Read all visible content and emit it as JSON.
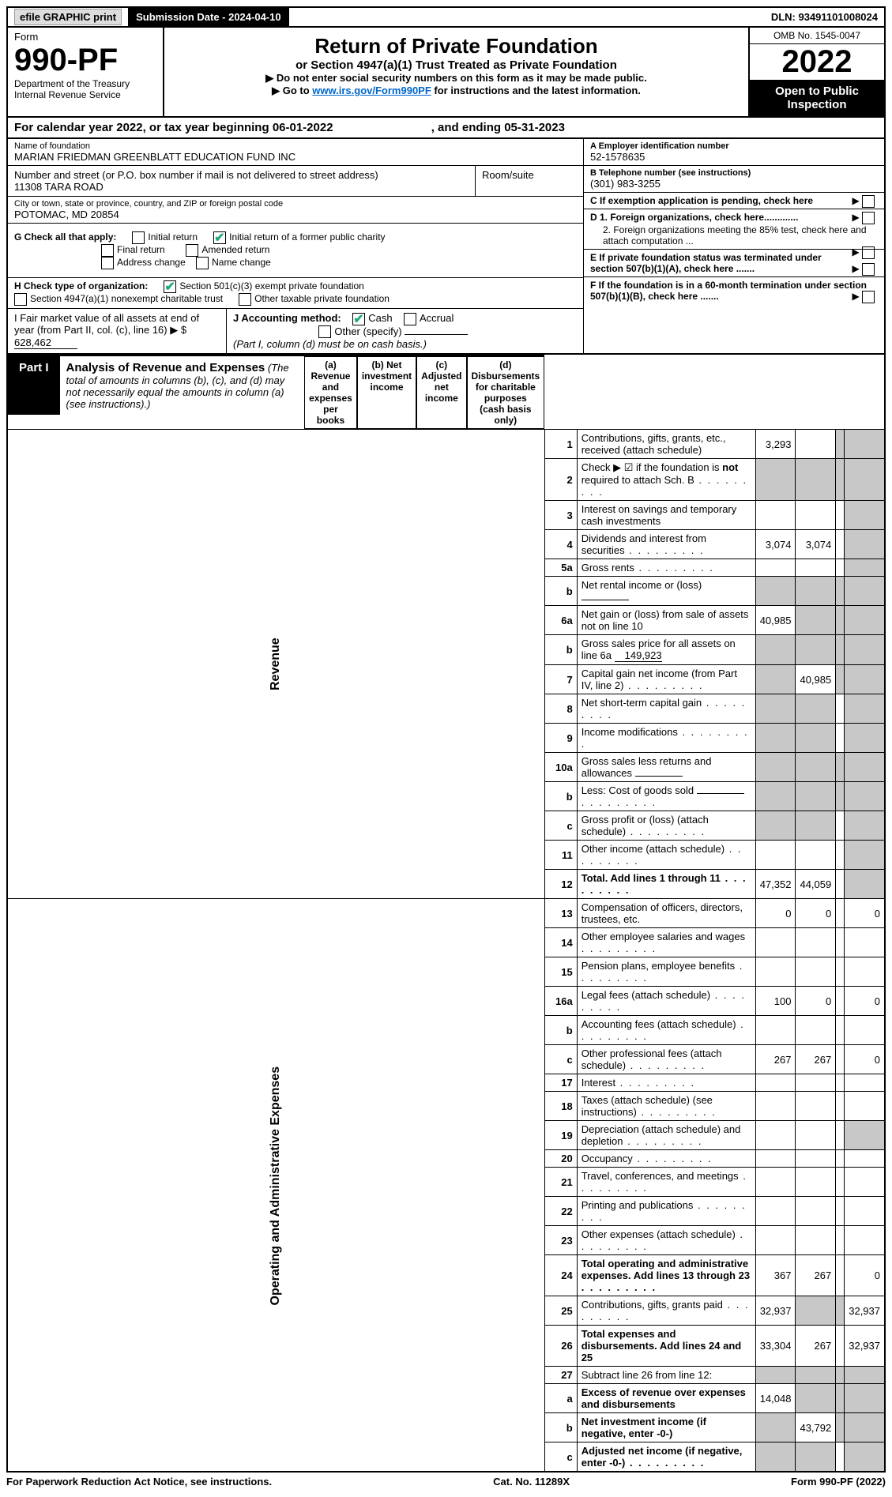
{
  "top": {
    "efile": "efile GRAPHIC print",
    "submission_label": "Submission Date - 2024-04-10",
    "dln_label": "DLN: 93491101008024"
  },
  "header": {
    "form_word": "Form",
    "form_no": "990-PF",
    "dept1": "Department of the Treasury",
    "dept2": "Internal Revenue Service",
    "title": "Return of Private Foundation",
    "subtitle": "or Section 4947(a)(1) Trust Treated as Private Foundation",
    "note1": "▶ Do not enter social security numbers on this form as it may be made public.",
    "note2_pre": "▶ Go to ",
    "note2_link": "www.irs.gov/Form990PF",
    "note2_post": " for instructions and the latest information.",
    "omb": "OMB No. 1545-0047",
    "year": "2022",
    "open": "Open to Public Inspection"
  },
  "calyear": {
    "text_pre": "For calendar year 2022, or tax year beginning ",
    "begin": "06-01-2022",
    "mid": " , and ending ",
    "end": "05-31-2023"
  },
  "info": {
    "name_lbl": "Name of foundation",
    "name": "MARIAN FRIEDMAN GREENBLATT EDUCATION FUND INC",
    "addr_lbl": "Number and street (or P.O. box number if mail is not delivered to street address)",
    "addr": "11308 TARA ROAD",
    "room_lbl": "Room/suite",
    "city_lbl": "City or town, state or province, country, and ZIP or foreign postal code",
    "city": "POTOMAC, MD  20854",
    "a_lbl": "A Employer identification number",
    "a_val": "52-1578635",
    "b_lbl": "B Telephone number (see instructions)",
    "b_val": "(301) 983-3255",
    "c_lbl": "C If exemption application is pending, check here",
    "d1_lbl": "D 1. Foreign organizations, check here.............",
    "d2_lbl": "2. Foreign organizations meeting the 85% test, check here and attach computation ...",
    "e_lbl": "E  If private foundation status was terminated under section 507(b)(1)(A), check here .......",
    "f_lbl": "F  If the foundation is in a 60-month termination under section 507(b)(1)(B), check here .......",
    "g_lbl": "G Check all that apply:",
    "g_opts": [
      "Initial return",
      "Initial return of a former public charity",
      "Final return",
      "Amended return",
      "Address change",
      "Name change"
    ],
    "h_lbl": "H Check type of organization:",
    "h_opt1": "Section 501(c)(3) exempt private foundation",
    "h_opt2": "Section 4947(a)(1) nonexempt charitable trust",
    "h_opt3": "Other taxable private foundation",
    "i_lbl": "I Fair market value of all assets at end of year (from Part II, col. (c), line 16) ▶ $",
    "i_val": "628,462",
    "j_lbl": "J Accounting method:",
    "j_cash": "Cash",
    "j_accrual": "Accrual",
    "j_other": "Other (specify)",
    "j_note": "(Part I, column (d) must be on cash basis.)"
  },
  "part1": {
    "label": "Part I",
    "title": "Analysis of Revenue and Expenses",
    "title_note": "(The total of amounts in columns (b), (c), and (d) may not necessarily equal the amounts in column (a) (see instructions).)",
    "col_a": "(a)  Revenue and expenses per books",
    "col_b": "(b)  Net investment income",
    "col_c": "(c)  Adjusted net income",
    "col_d": "(d)  Disbursements for charitable purposes (cash basis only)",
    "side_rev": "Revenue",
    "side_exp": "Operating and Administrative Expenses"
  },
  "rows": [
    {
      "n": "1",
      "desc": "Contributions, gifts, grants, etc., received (attach schedule)",
      "a": "3,293",
      "b": "",
      "c": "grey",
      "d": "grey"
    },
    {
      "n": "2",
      "desc": "Check ▶ ☑ if the foundation is not required to attach Sch. B",
      "a": "grey",
      "b": "grey",
      "c": "grey",
      "d": "grey",
      "dots": true,
      "bold_not": true
    },
    {
      "n": "3",
      "desc": "Interest on savings and temporary cash investments",
      "a": "",
      "b": "",
      "c": "",
      "d": "grey"
    },
    {
      "n": "4",
      "desc": "Dividends and interest from securities",
      "a": "3,074",
      "b": "3,074",
      "c": "",
      "d": "grey",
      "dots": true
    },
    {
      "n": "5a",
      "desc": "Gross rents",
      "a": "",
      "b": "",
      "c": "",
      "d": "grey",
      "dots": true
    },
    {
      "n": "b",
      "desc": "Net rental income or (loss)",
      "a": "grey",
      "b": "grey",
      "c": "grey",
      "d": "grey",
      "inline_val": ""
    },
    {
      "n": "6a",
      "desc": "Net gain or (loss) from sale of assets not on line 10",
      "a": "40,985",
      "b": "grey",
      "c": "grey",
      "d": "grey"
    },
    {
      "n": "b",
      "desc": "Gross sales price for all assets on line 6a",
      "a": "grey",
      "b": "grey",
      "c": "grey",
      "d": "grey",
      "inline_val": "149,923"
    },
    {
      "n": "7",
      "desc": "Capital gain net income (from Part IV, line 2)",
      "a": "grey",
      "b": "40,985",
      "c": "grey",
      "d": "grey",
      "dots": true
    },
    {
      "n": "8",
      "desc": "Net short-term capital gain",
      "a": "grey",
      "b": "grey",
      "c": "",
      "d": "grey",
      "dots": true
    },
    {
      "n": "9",
      "desc": "Income modifications",
      "a": "grey",
      "b": "grey",
      "c": "",
      "d": "grey",
      "dots": true
    },
    {
      "n": "10a",
      "desc": "Gross sales less returns and allowances",
      "a": "grey",
      "b": "grey",
      "c": "grey",
      "d": "grey",
      "inline_val": ""
    },
    {
      "n": "b",
      "desc": "Less: Cost of goods sold",
      "a": "grey",
      "b": "grey",
      "c": "grey",
      "d": "grey",
      "dots": true,
      "inline_val": ""
    },
    {
      "n": "c",
      "desc": "Gross profit or (loss) (attach schedule)",
      "a": "grey",
      "b": "grey",
      "c": "",
      "d": "grey",
      "dots": true
    },
    {
      "n": "11",
      "desc": "Other income (attach schedule)",
      "a": "",
      "b": "",
      "c": "",
      "d": "grey",
      "dots": true
    },
    {
      "n": "12",
      "desc": "Total. Add lines 1 through 11",
      "a": "47,352",
      "b": "44,059",
      "c": "",
      "d": "grey",
      "dots": true,
      "bold": true
    }
  ],
  "exp_rows": [
    {
      "n": "13",
      "desc": "Compensation of officers, directors, trustees, etc.",
      "a": "0",
      "b": "0",
      "c": "",
      "d": "0"
    },
    {
      "n": "14",
      "desc": "Other employee salaries and wages",
      "a": "",
      "b": "",
      "c": "",
      "d": "",
      "dots": true
    },
    {
      "n": "15",
      "desc": "Pension plans, employee benefits",
      "a": "",
      "b": "",
      "c": "",
      "d": "",
      "dots": true
    },
    {
      "n": "16a",
      "desc": "Legal fees (attach schedule)",
      "a": "100",
      "b": "0",
      "c": "",
      "d": "0",
      "dots": true
    },
    {
      "n": "b",
      "desc": "Accounting fees (attach schedule)",
      "a": "",
      "b": "",
      "c": "",
      "d": "",
      "dots": true
    },
    {
      "n": "c",
      "desc": "Other professional fees (attach schedule)",
      "a": "267",
      "b": "267",
      "c": "",
      "d": "0",
      "dots": true
    },
    {
      "n": "17",
      "desc": "Interest",
      "a": "",
      "b": "",
      "c": "",
      "d": "",
      "dots": true
    },
    {
      "n": "18",
      "desc": "Taxes (attach schedule) (see instructions)",
      "a": "",
      "b": "",
      "c": "",
      "d": "",
      "dots": true
    },
    {
      "n": "19",
      "desc": "Depreciation (attach schedule) and depletion",
      "a": "",
      "b": "",
      "c": "",
      "d": "grey",
      "dots": true
    },
    {
      "n": "20",
      "desc": "Occupancy",
      "a": "",
      "b": "",
      "c": "",
      "d": "",
      "dots": true
    },
    {
      "n": "21",
      "desc": "Travel, conferences, and meetings",
      "a": "",
      "b": "",
      "c": "",
      "d": "",
      "dots": true
    },
    {
      "n": "22",
      "desc": "Printing and publications",
      "a": "",
      "b": "",
      "c": "",
      "d": "",
      "dots": true
    },
    {
      "n": "23",
      "desc": "Other expenses (attach schedule)",
      "a": "",
      "b": "",
      "c": "",
      "d": "",
      "dots": true
    },
    {
      "n": "24",
      "desc": "Total operating and administrative expenses. Add lines 13 through 23",
      "a": "367",
      "b": "267",
      "c": "",
      "d": "0",
      "dots": true,
      "bold": true
    },
    {
      "n": "25",
      "desc": "Contributions, gifts, grants paid",
      "a": "32,937",
      "b": "grey",
      "c": "grey",
      "d": "32,937",
      "dots": true
    },
    {
      "n": "26",
      "desc": "Total expenses and disbursements. Add lines 24 and 25",
      "a": "33,304",
      "b": "267",
      "c": "",
      "d": "32,937",
      "bold": true
    },
    {
      "n": "27",
      "desc": "Subtract line 26 from line 12:",
      "a": "grey",
      "b": "grey",
      "c": "grey",
      "d": "grey"
    },
    {
      "n": "a",
      "desc": "Excess of revenue over expenses and disbursements",
      "a": "14,048",
      "b": "grey",
      "c": "grey",
      "d": "grey",
      "bold": true
    },
    {
      "n": "b",
      "desc": "Net investment income (if negative, enter -0-)",
      "a": "grey",
      "b": "43,792",
      "c": "grey",
      "d": "grey",
      "bold": true
    },
    {
      "n": "c",
      "desc": "Adjusted net income (if negative, enter -0-)",
      "a": "grey",
      "b": "grey",
      "c": "",
      "d": "grey",
      "bold": true,
      "dots": true
    }
  ],
  "footer": {
    "left": "For Paperwork Reduction Act Notice, see instructions.",
    "mid": "Cat. No. 11289X",
    "right": "Form 990-PF (2022)"
  },
  "colors": {
    "grey": "#c8c8c8",
    "link": "#0066cc",
    "check": "#22aa77"
  }
}
